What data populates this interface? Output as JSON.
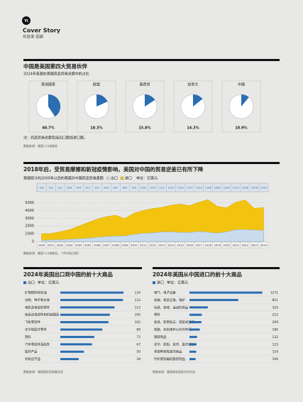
{
  "header": {
    "logo": "YI",
    "title": "Cover Story",
    "subtitle": "有故事 图解"
  },
  "chart_data": [
    {
      "type": "pie",
      "title": "中国是美国第四大贸易伙伴",
      "subtitle": "2024年各国在美国商品贸易总额中的占比",
      "categories": [
        "其他国家",
        "欧盟",
        "墨西哥",
        "加拿大",
        "中国"
      ],
      "values": [
        40.7,
        18.3,
        15.8,
        14.3,
        10.9
      ],
      "value_labels": [
        "40.7%",
        "18.3%",
        "15.8%",
        "14.3%",
        "10.9%"
      ],
      "color": "#2a6db0",
      "note": "注：商品贸易总额包括出口额加进口额。",
      "source": "数据来源：美国人口调查局"
    },
    {
      "type": "area",
      "title": "2018年后，受贸易摩擦和新冠疫情影响，美国对中国的贸易逆差已有所下降",
      "subtitle": "美国统计的2000年以后的美国对中国商品贸易差额",
      "unit": "单位：亿美元",
      "categories": [
        "2000",
        "2001",
        "2002",
        "2003",
        "2004",
        "2005",
        "2006",
        "2007",
        "2008",
        "2009",
        "2010",
        "2011",
        "2012",
        "2013",
        "2014",
        "2015",
        "2016",
        "2017",
        "2018",
        "2019",
        "2020",
        "2021",
        "2022",
        "2023",
        "2024"
      ],
      "series": [
        {
          "name": "进口",
          "color": "#f2c40f",
          "values": [
            1000,
            1023,
            1252,
            1524,
            1967,
            2435,
            2878,
            3214,
            3378,
            2964,
            3650,
            3994,
            4256,
            4404,
            4686,
            4832,
            4626,
            5056,
            5395,
            4527,
            4354,
            5062,
            5368,
            4271,
            4389
          ]
        },
        {
          "name": "出口",
          "color": "#c9dcee",
          "values": [
            162,
            192,
            221,
            284,
            344,
            412,
            537,
            629,
            697,
            695,
            919,
            1041,
            1105,
            1217,
            1237,
            1159,
            1157,
            1299,
            1196,
            1069,
            1240,
            1514,
            1538,
            1478,
            1435
          ]
        }
      ],
      "ylim": [
        0,
        5500
      ],
      "yticks": [
        0,
        1000,
        2000,
        3000,
        4000,
        5000
      ],
      "grid": true,
      "source": "数据来源：美国人口调查局，《华尔街日报》"
    },
    {
      "type": "hbar",
      "title": "2024年美国出口到中国的前十大商品",
      "unit": "单位：亿美元",
      "categories": [
        "矿物燃料和石油",
        "谷物、种子和水果",
        "电机及电视机零件",
        "核反应堆部件和机械器具",
        "飞机零部件",
        "光学和医疗零件",
        "塑料",
        "汽车零部件及配件",
        "医药产品",
        "有机化学品"
      ],
      "series": [
        {
          "name": "出口",
          "color": "#2a6db0",
          "values": [
            134,
            133,
            115,
            105,
            102,
            89,
            72,
            67,
            50,
            39
          ]
        }
      ],
      "xlim": [
        0,
        140
      ],
      "source": "数据来源：美国国际贸易委员会"
    },
    {
      "type": "hbar",
      "title": "2024年美国从中国进口的前十大商品",
      "unit": "单位：亿美元",
      "categories": [
        "电气、电子设备",
        "机械、核反应堆、锅炉",
        "玩具、游戏、运动的用品",
        "塑料",
        "家具、照明标志、装配式建筑",
        "铁路、有轨电车以外的车辆",
        "钢铁制品",
        "光学、照相、技术、医疗器械",
        "未按种类规定的商品",
        "针织或钩编的服装制品"
      ],
      "series": [
        {
          "name": "进口",
          "color": "#2a6db0",
          "values": [
            1271,
            851,
            320,
            215,
            209,
            180,
            132,
            123,
            116,
            106
          ]
        }
      ],
      "xlim": [
        0,
        1300
      ],
      "source": "数据来源：美国商务部经济分析局"
    }
  ]
}
